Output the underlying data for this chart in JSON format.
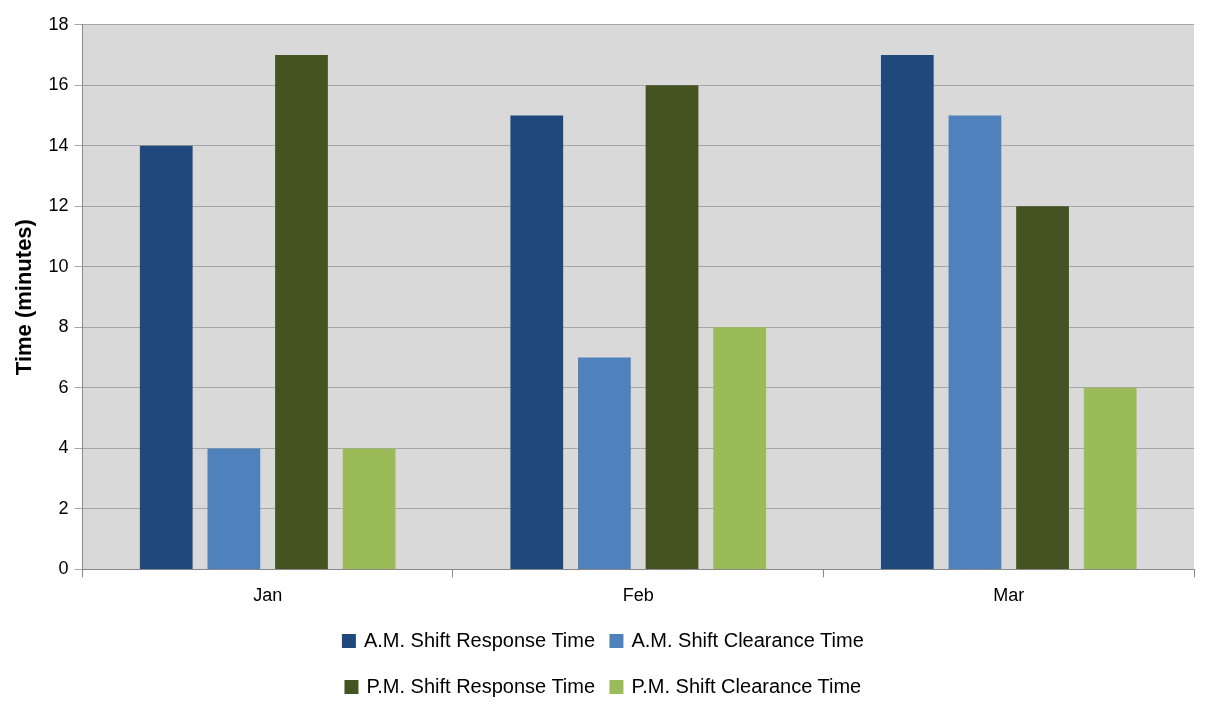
{
  "chart_data": {
    "type": "bar",
    "ylabel": "Time (minutes)",
    "categories": [
      "Jan",
      "Feb",
      "Mar"
    ],
    "series": [
      {
        "name": "A.M. Shift Response Time",
        "color": "#1f497d",
        "values": [
          14,
          15,
          17
        ]
      },
      {
        "name": "A.M. Shift Clearance Time",
        "color": "#4f81bd",
        "values": [
          4,
          7,
          15
        ]
      },
      {
        "name": "P.M. Shift Response Time",
        "color": "#435322",
        "values": [
          17,
          16,
          12
        ]
      },
      {
        "name": "P.M. Shift Clearance Time",
        "color": "#9bbb59",
        "values": [
          4,
          8,
          6
        ]
      }
    ],
    "ylim": [
      0,
      18
    ],
    "yticks": [
      0,
      2,
      4,
      6,
      8,
      10,
      12,
      14,
      16,
      18
    ],
    "grid": "y",
    "legend": "bottom"
  }
}
